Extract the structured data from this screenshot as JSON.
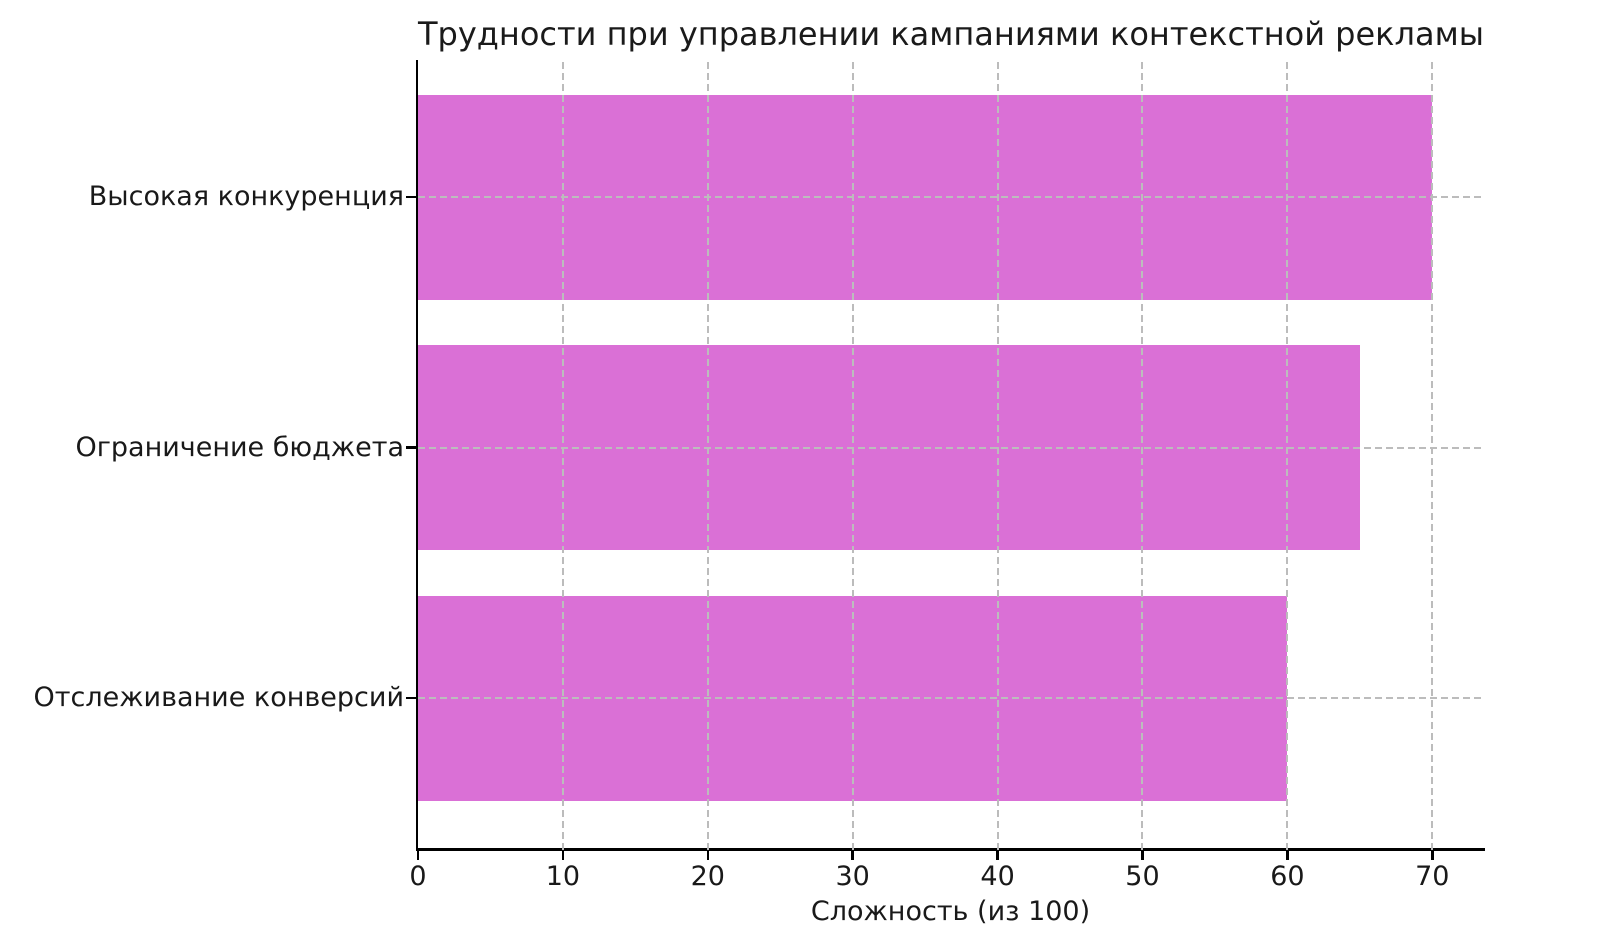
{
  "figure": {
    "background": "#ffffff"
  },
  "chart_data": {
    "type": "bar",
    "orientation": "horizontal",
    "title": "Трудности при управлении кампаниями контекстной рекламы",
    "categories": [
      "Высокая конкуренция",
      "Ограничение бюджета",
      "Отслеживание конверсий"
    ],
    "values": [
      70,
      65,
      60
    ],
    "xlabel": "Сложность (из 100)",
    "ylabel": "",
    "xticks": [
      0,
      10,
      20,
      30,
      40,
      50,
      60,
      70
    ],
    "xlim": [
      0,
      73.5
    ],
    "bar_color": "#DA70D6",
    "grid": true,
    "grid_style": "dashed",
    "grid_color": "#bcbcbc",
    "grid_above_bars": true,
    "spine_color": "#000000",
    "text_color": "#191919",
    "legend": "none"
  }
}
